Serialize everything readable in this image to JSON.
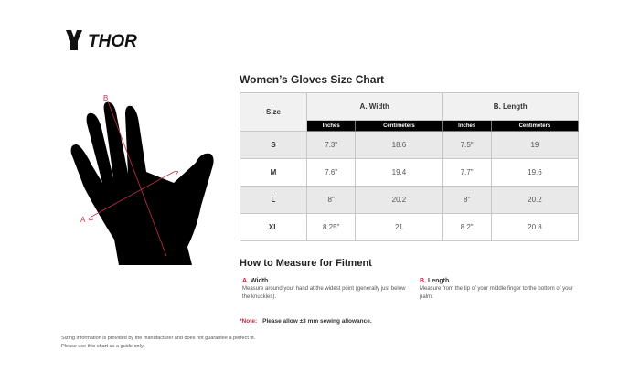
{
  "brand": {
    "logo_text": "THOR"
  },
  "diagram": {
    "label_a": "A",
    "label_b": "B",
    "accent": "#c4314b"
  },
  "chart": {
    "title": "Women’s Gloves Size Chart",
    "size_header": "Size",
    "group_headers": [
      "A. Width",
      "B. Length"
    ],
    "unit_headers": [
      "Inches",
      "Centimeters",
      "Inches",
      "Centimeters"
    ],
    "rows": [
      {
        "size": "S",
        "width_in": "7.3\"",
        "width_cm": "18.6",
        "length_in": "7.5\"",
        "length_cm": "19"
      },
      {
        "size": "M",
        "width_in": "7.6\"",
        "width_cm": "19.4",
        "length_in": "7.7\"",
        "length_cm": "19.6"
      },
      {
        "size": "L",
        "width_in": "8\"",
        "width_cm": "20.2",
        "length_in": "8\"",
        "length_cm": "20.2"
      },
      {
        "size": "XL",
        "width_in": "8.25\"",
        "width_cm": "21",
        "length_in": "8.2\"",
        "length_cm": "20.8"
      }
    ]
  },
  "measure": {
    "title": "How to Measure for Fitment",
    "a": {
      "letter": "A.",
      "label": "Width",
      "desc": "Measure around your hand at the widest point (generally just below the knuckles)."
    },
    "b": {
      "letter": "B.",
      "label": "Length",
      "desc": "Measure from the tip of your middle finger to the bottom of your palm."
    }
  },
  "note": {
    "label": "*Note:",
    "text": "Please allow ±3 mm sewing allowance."
  },
  "disclaimer": [
    "Sizing information is provided by the manufacturer and does not guarantee a perfect fit.",
    "Please use this chart as a guide only."
  ]
}
